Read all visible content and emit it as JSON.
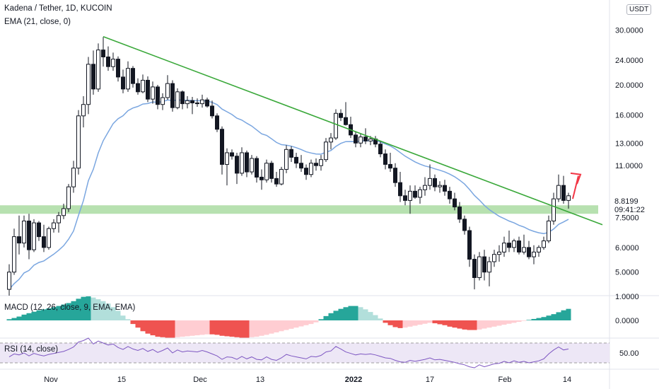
{
  "header": {
    "symbol_title": "Kadena / Tether, 1D, KUCOIN",
    "ema_legend": "EMA (21, close, 0)",
    "macd_legend": "MACD (12, 26, close, 9, EMA, EMA)",
    "rsi_legend": "RSI (14, close)",
    "currency": "USDT"
  },
  "price_tags": {
    "last_price": "8.8199",
    "countdown": "09:41:22"
  },
  "colors": {
    "up": "#26a69a",
    "down": "#ef5350",
    "candle": "#131722",
    "ema": "#7aa6e0",
    "trendline": "#3aa83a",
    "support_zone": "#b7e1b0",
    "arrow": "#f23645",
    "rsi_line": "#7e57c2",
    "rsi_band": "#ede7f6"
  },
  "chart_data": [
    {
      "type": "candlestick",
      "title": "Kadena / Tether, 1D, KUCOIN",
      "y_scale": "log",
      "ylim": [
        4.2,
        37.5
      ],
      "y_ticks": [
        "30.0000",
        "24.0000",
        "20.0000",
        "16.0000",
        "13.0000",
        "11.0000",
        "7.5000",
        "6.0000",
        "5.0000"
      ],
      "x_ticks": [
        "Nov",
        "15",
        "Dec",
        "13",
        "2022",
        "17",
        "Feb",
        "14"
      ],
      "ema_label": "EMA (21, close, 0)",
      "ohlc": [
        [
          4.4,
          5.3,
          4.2,
          5.0
        ],
        [
          5.0,
          6.9,
          4.9,
          6.5
        ],
        [
          6.5,
          7.6,
          5.7,
          6.2
        ],
        [
          6.2,
          7.6,
          6.0,
          7.3
        ],
        [
          7.3,
          7.7,
          5.5,
          5.9
        ],
        [
          5.9,
          7.4,
          5.8,
          7.2
        ],
        [
          7.2,
          7.3,
          6.3,
          6.5
        ],
        [
          6.5,
          7.1,
          5.8,
          6.0
        ],
        [
          6.0,
          7.0,
          5.9,
          6.9
        ],
        [
          6.9,
          7.4,
          6.7,
          7.2
        ],
        [
          7.2,
          7.8,
          6.7,
          7.6
        ],
        [
          7.6,
          8.3,
          7.4,
          8.0
        ],
        [
          8.0,
          9.6,
          7.8,
          9.4
        ],
        [
          9.4,
          11.4,
          9.0,
          10.8
        ],
        [
          10.8,
          16.6,
          10.3,
          15.9
        ],
        [
          15.9,
          18.4,
          14.6,
          17.3
        ],
        [
          17.3,
          24.6,
          16.1,
          23.3
        ],
        [
          23.3,
          25.8,
          18.6,
          19.4
        ],
        [
          19.4,
          27.2,
          19.0,
          25.9
        ],
        [
          25.9,
          28.5,
          22.9,
          24.6
        ],
        [
          24.6,
          26.6,
          22.2,
          22.9
        ],
        [
          22.9,
          25.4,
          22.2,
          24.2
        ],
        [
          24.2,
          24.7,
          20.5,
          21.2
        ],
        [
          21.2,
          22.4,
          18.8,
          19.4
        ],
        [
          19.4,
          23.8,
          19.0,
          22.6
        ],
        [
          22.6,
          23.0,
          19.6,
          20.2
        ],
        [
          20.2,
          21.0,
          18.6,
          19.0
        ],
        [
          19.0,
          21.6,
          18.8,
          20.7
        ],
        [
          20.7,
          21.3,
          17.6,
          18.0
        ],
        [
          18.0,
          20.5,
          17.4,
          19.7
        ],
        [
          19.7,
          20.0,
          16.7,
          17.3
        ],
        [
          17.3,
          18.8,
          16.6,
          18.2
        ],
        [
          18.2,
          21.5,
          17.9,
          20.2
        ],
        [
          20.2,
          20.7,
          16.4,
          16.9
        ],
        [
          16.9,
          19.5,
          16.7,
          19.0
        ],
        [
          19.0,
          19.2,
          16.7,
          17.4
        ],
        [
          17.4,
          18.4,
          16.8,
          17.8
        ],
        [
          17.8,
          18.3,
          16.1,
          17.5
        ],
        [
          17.5,
          18.1,
          17.0,
          17.4
        ],
        [
          17.4,
          18.6,
          16.9,
          17.9
        ],
        [
          17.9,
          18.2,
          16.9,
          17.1
        ],
        [
          17.1,
          17.8,
          15.6,
          15.9
        ],
        [
          15.9,
          16.2,
          14.1,
          14.4
        ],
        [
          14.4,
          14.7,
          10.3,
          11.1
        ],
        [
          11.1,
          12.5,
          9.5,
          12.1
        ],
        [
          12.1,
          12.4,
          11.5,
          11.8
        ],
        [
          11.8,
          12.1,
          9.6,
          10.4
        ],
        [
          10.4,
          12.6,
          10.2,
          12.1
        ],
        [
          12.1,
          12.3,
          10.1,
          10.5
        ],
        [
          10.5,
          11.9,
          10.3,
          11.6
        ],
        [
          11.6,
          11.8,
          9.7,
          10.1
        ],
        [
          10.1,
          10.7,
          9.2,
          9.9
        ],
        [
          9.9,
          11.5,
          9.7,
          11.2
        ],
        [
          11.2,
          11.4,
          9.7,
          10.0
        ],
        [
          10.0,
          10.5,
          9.4,
          9.6
        ],
        [
          9.6,
          10.9,
          9.5,
          10.7
        ],
        [
          10.7,
          12.8,
          10.4,
          12.4
        ],
        [
          12.4,
          12.7,
          11.3,
          11.7
        ],
        [
          11.7,
          12.1,
          10.8,
          11.2
        ],
        [
          11.2,
          11.9,
          10.5,
          10.8
        ],
        [
          10.8,
          11.1,
          9.9,
          10.3
        ],
        [
          10.3,
          11.5,
          10.1,
          11.2
        ],
        [
          11.2,
          11.6,
          10.6,
          11.0
        ],
        [
          11.0,
          11.9,
          10.6,
          11.5
        ],
        [
          11.5,
          13.5,
          11.3,
          13.1
        ],
        [
          13.1,
          14.0,
          12.4,
          13.5
        ],
        [
          13.5,
          16.7,
          13.3,
          16.2
        ],
        [
          16.2,
          16.7,
          15.3,
          15.7
        ],
        [
          15.7,
          17.6,
          14.8,
          14.9
        ],
        [
          14.9,
          15.8,
          13.5,
          13.8
        ],
        [
          13.8,
          14.2,
          12.6,
          13.0
        ],
        [
          13.0,
          13.9,
          12.6,
          13.6
        ],
        [
          13.6,
          14.5,
          12.9,
          13.2
        ],
        [
          13.2,
          13.7,
          12.8,
          13.4
        ],
        [
          13.4,
          13.7,
          12.6,
          12.9
        ],
        [
          12.9,
          13.2,
          11.7,
          12.0
        ],
        [
          12.0,
          12.4,
          10.7,
          11.1
        ],
        [
          11.1,
          12.1,
          10.5,
          10.8
        ],
        [
          10.8,
          11.2,
          9.4,
          9.7
        ],
        [
          9.7,
          10.5,
          8.4,
          8.8
        ],
        [
          8.8,
          9.2,
          8.2,
          8.5
        ],
        [
          8.5,
          9.5,
          7.7,
          9.1
        ],
        [
          9.1,
          9.5,
          8.6,
          8.7
        ],
        [
          8.7,
          9.4,
          8.3,
          9.2
        ],
        [
          9.2,
          10.1,
          8.8,
          9.5
        ],
        [
          9.5,
          11.1,
          9.2,
          10.0
        ],
        [
          10.0,
          10.3,
          9.1,
          9.4
        ],
        [
          9.4,
          9.8,
          9.0,
          9.5
        ],
        [
          9.5,
          9.9,
          8.8,
          9.1
        ],
        [
          9.1,
          9.4,
          8.3,
          8.6
        ],
        [
          8.6,
          9.0,
          7.9,
          8.1
        ],
        [
          8.1,
          8.4,
          7.2,
          7.4
        ],
        [
          7.4,
          7.6,
          6.6,
          6.8
        ],
        [
          6.8,
          7.0,
          5.2,
          5.5
        ],
        [
          5.5,
          5.7,
          4.4,
          4.8
        ],
        [
          4.8,
          5.8,
          4.7,
          5.6
        ],
        [
          5.6,
          5.9,
          4.7,
          5.0
        ],
        [
          5.0,
          5.6,
          4.5,
          5.4
        ],
        [
          5.4,
          5.9,
          5.2,
          5.7
        ],
        [
          5.7,
          6.1,
          5.4,
          5.8
        ],
        [
          5.8,
          6.5,
          5.6,
          6.2
        ],
        [
          6.2,
          6.8,
          5.8,
          6.0
        ],
        [
          6.0,
          6.4,
          5.8,
          6.3
        ],
        [
          6.3,
          6.5,
          5.7,
          5.8
        ],
        [
          5.8,
          6.6,
          5.7,
          6.0
        ],
        [
          6.0,
          6.3,
          5.5,
          5.6
        ],
        [
          5.6,
          6.1,
          5.3,
          5.8
        ],
        [
          5.8,
          6.1,
          5.6,
          6.0
        ],
        [
          6.0,
          6.5,
          5.9,
          6.3
        ],
        [
          6.3,
          7.6,
          6.2,
          7.3
        ],
        [
          7.3,
          9.0,
          7.1,
          8.6
        ],
        [
          8.6,
          10.3,
          8.4,
          9.5
        ],
        [
          9.5,
          10.2,
          8.3,
          8.5
        ],
        [
          8.5,
          9.0,
          8.0,
          8.8
        ]
      ],
      "ema21": [
        4.4,
        4.59,
        4.74,
        4.97,
        5.06,
        5.26,
        5.37,
        5.43,
        5.57,
        5.71,
        5.88,
        6.08,
        6.38,
        6.78,
        7.61,
        8.49,
        9.84,
        10.71,
        12.09,
        13.23,
        14.1,
        15.01,
        15.57,
        15.92,
        16.52,
        16.85,
        17.05,
        17.36,
        17.42,
        17.62,
        17.59,
        17.65,
        17.89,
        17.8,
        17.89,
        17.85,
        17.85,
        17.82,
        17.78,
        17.8,
        17.74,
        17.57,
        17.28,
        16.72,
        16.39,
        16.06,
        15.63,
        15.41,
        15.06,
        14.75,
        14.33,
        13.92,
        13.76,
        13.42,
        13.06,
        12.85,
        12.8,
        12.7,
        12.56,
        12.39,
        12.19,
        12.08,
        11.99,
        11.97,
        12.15,
        12.3,
        12.68,
        12.97,
        13.14,
        13.15,
        13.14,
        13.2,
        13.21,
        13.23,
        13.21,
        13.1,
        12.92,
        12.73,
        12.45,
        12.12,
        11.8,
        11.55,
        11.31,
        11.12,
        10.97,
        10.88,
        10.74,
        10.63,
        10.5,
        10.33,
        10.13,
        9.88,
        9.6,
        9.22,
        8.82,
        8.52,
        8.2,
        7.94,
        7.74,
        7.56,
        7.43,
        7.3,
        7.2,
        7.07,
        6.98,
        6.85,
        6.76,
        6.69,
        6.65,
        6.71,
        6.88,
        7.12,
        7.25,
        7.39
      ]
    },
    {
      "type": "histogram",
      "title": "MACD (12, 26, close, 9, EMA, EMA)",
      "y_ticks": [
        "1.0000",
        "0.0000"
      ],
      "values": [
        0.05,
        0.1,
        0.16,
        0.24,
        0.3,
        0.36,
        0.42,
        0.46,
        0.5,
        0.55,
        0.6,
        0.66,
        0.72,
        0.8,
        0.9,
        0.98,
        1.0,
        0.95,
        0.88,
        0.8,
        0.7,
        0.55,
        0.4,
        0.2,
        0.05,
        -0.15,
        -0.3,
        -0.45,
        -0.55,
        -0.62,
        -0.68,
        -0.7,
        -0.72,
        -0.72,
        -0.7,
        -0.68,
        -0.66,
        -0.64,
        -0.62,
        -0.6,
        -0.58,
        -0.58,
        -0.6,
        -0.64,
        -0.66,
        -0.68,
        -0.7,
        -0.72,
        -0.72,
        -0.7,
        -0.68,
        -0.64,
        -0.6,
        -0.55,
        -0.5,
        -0.45,
        -0.4,
        -0.35,
        -0.3,
        -0.25,
        -0.2,
        -0.15,
        -0.08,
        0.05,
        0.18,
        0.3,
        0.4,
        0.48,
        0.55,
        0.6,
        0.6,
        0.55,
        0.46,
        0.35,
        0.22,
        0.08,
        -0.1,
        -0.2,
        -0.28,
        -0.32,
        -0.3,
        -0.26,
        -0.22,
        -0.18,
        -0.14,
        -0.1,
        -0.12,
        -0.16,
        -0.2,
        -0.26,
        -0.3,
        -0.34,
        -0.38,
        -0.4,
        -0.4,
        -0.38,
        -0.34,
        -0.3,
        -0.26,
        -0.22,
        -0.18,
        -0.14,
        -0.1,
        -0.06,
        -0.02,
        0.02,
        0.06,
        0.1,
        0.14,
        0.2,
        0.26,
        0.34,
        0.42,
        0.48
      ]
    },
    {
      "type": "line",
      "title": "RSI (14, close)",
      "y_ticks": [
        "50.00"
      ],
      "ylim": [
        20,
        80
      ],
      "band": [
        30,
        70
      ],
      "values": [
        42,
        48,
        46,
        50,
        44,
        49,
        46,
        44,
        47,
        49,
        51,
        53,
        57,
        62,
        72,
        75,
        80,
        68,
        74,
        70,
        66,
        68,
        61,
        57,
        63,
        58,
        55,
        59,
        53,
        57,
        51,
        55,
        60,
        50,
        56,
        52,
        54,
        53,
        52,
        55,
        52,
        48,
        44,
        37,
        42,
        41,
        37,
        43,
        38,
        42,
        37,
        36,
        42,
        37,
        35,
        40,
        47,
        44,
        42,
        40,
        38,
        43,
        42,
        45,
        52,
        54,
        63,
        58,
        52,
        49,
        46,
        48,
        47,
        48,
        46,
        43,
        40,
        39,
        35,
        32,
        31,
        35,
        33,
        35,
        37,
        40,
        36,
        37,
        35,
        33,
        31,
        28,
        26,
        22,
        20,
        26,
        22,
        25,
        28,
        29,
        33,
        30,
        34,
        31,
        33,
        30,
        32,
        34,
        38,
        48,
        56,
        62,
        56,
        58
      ]
    }
  ]
}
